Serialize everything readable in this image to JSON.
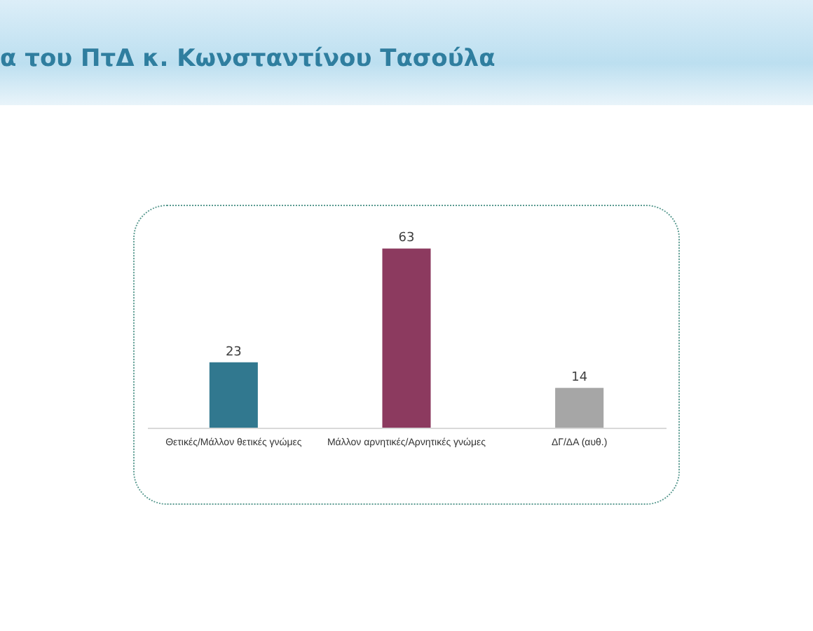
{
  "chart_data": {
    "type": "bar",
    "title": "α του ΠτΔ κ. Κωνσταντίνου Τασούλα",
    "categories": [
      "Θετικές/Μάλλον θετικές γνώμες",
      "Μάλλον αρνητικές/Αρνητικές γνώμες",
      "ΔΓ/ΔΑ (αυθ.)"
    ],
    "values": [
      23,
      63,
      14
    ],
    "colors": [
      "#31788f",
      "#8c3a5f",
      "#a6a6a6"
    ],
    "data_labels": true
  }
}
